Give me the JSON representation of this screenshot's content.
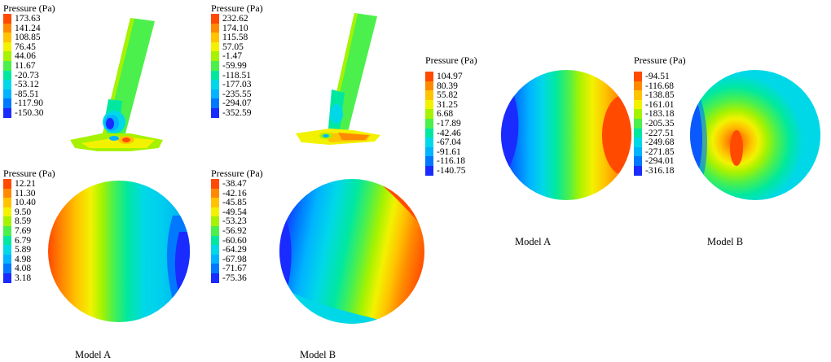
{
  "palette": [
    "#ff4a00",
    "#ff8a00",
    "#ffc300",
    "#f2f200",
    "#a6f200",
    "#4cf04c",
    "#00e8a0",
    "#00d8e8",
    "#00b4ff",
    "#0078ff",
    "#1a2bff"
  ],
  "legends": {
    "top_left": {
      "title": "Pressure (Pa)",
      "values": [
        "173.63",
        "141.24",
        "108.85",
        "76.45",
        "44.06",
        "11.67",
        "-20.73",
        "-53.12",
        "-85.51",
        "-117.90",
        "-150.30"
      ]
    },
    "top_mid": {
      "title": "Pressure (Pa)",
      "values": [
        "232.62",
        "174.10",
        "115.58",
        "57.05",
        "-1.47",
        "-59.99",
        "-118.51",
        "-177.03",
        "-235.55",
        "-294.07",
        "-352.59"
      ]
    },
    "bot_left": {
      "title": "Pressure (Pa)",
      "values": [
        "12.21",
        "11.30",
        "10.40",
        "9.50",
        "8.59",
        "7.69",
        "6.79",
        "5.89",
        "4.98",
        "4.08",
        "3.18"
      ]
    },
    "bot_mid": {
      "title": "Pressure (Pa)",
      "values": [
        "-38.47",
        "-42.16",
        "-45.85",
        "-49.54",
        "-53.23",
        "-56.92",
        "-60.60",
        "-64.29",
        "-67.98",
        "-71.67",
        "-75.36"
      ]
    },
    "right_a": {
      "title": "Pressure (Pa)",
      "values": [
        "104.97",
        "80.39",
        "55.82",
        "31.25",
        "6.68",
        "-17.89",
        "-42.46",
        "-67.04",
        "-91.61",
        "-116.18",
        "-140.75"
      ]
    },
    "right_b": {
      "title": "Pressure (Pa)",
      "values": [
        "-94.51",
        "-116.68",
        "-138.85",
        "-161.01",
        "-183.18",
        "-205.35",
        "-227.51",
        "-249.68",
        "-271.85",
        "-294.01",
        "-316.18"
      ]
    }
  },
  "captions": {
    "left_model_a": "Model A",
    "left_model_b": "Model B",
    "right_model_a": "Model A",
    "right_model_b": "Model B"
  }
}
